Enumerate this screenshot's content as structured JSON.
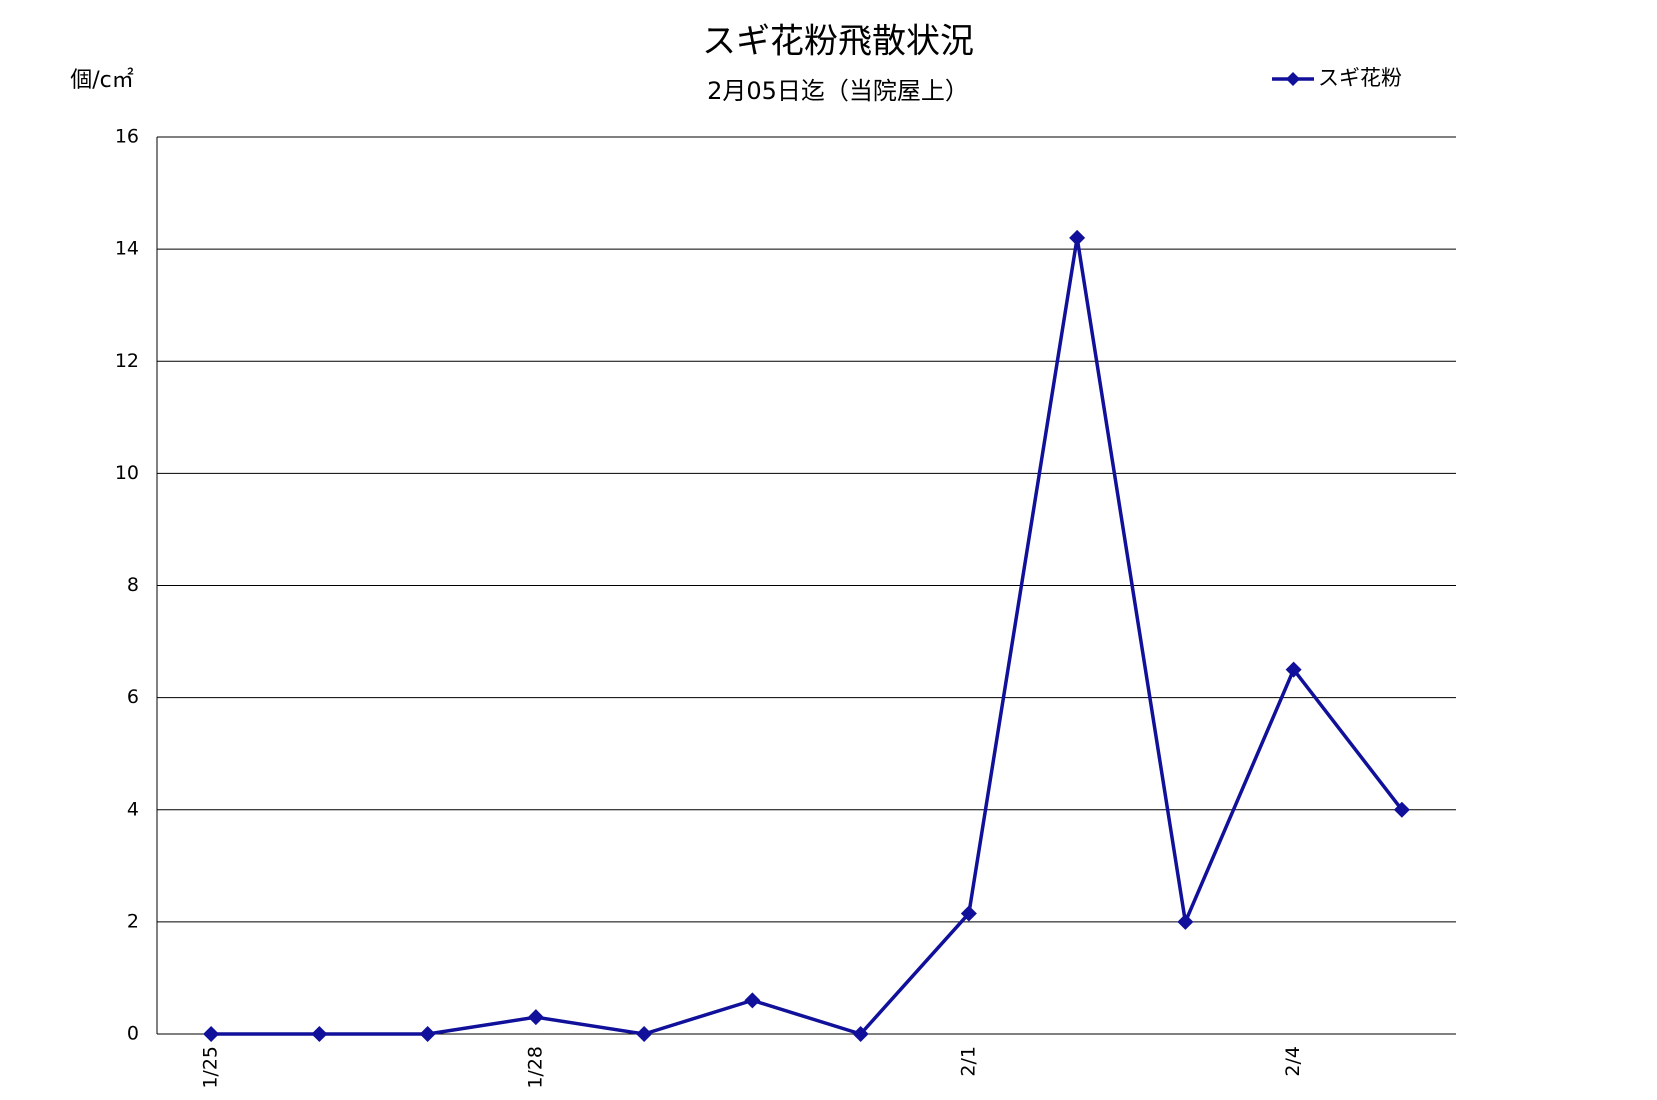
{
  "chart_data": {
    "type": "line",
    "title": "スギ花粉飛散状況",
    "subtitle": "2月05日迄（当院屋上）",
    "y_label": "個/c㎡",
    "categories": [
      "1/25",
      null,
      null,
      "1/28",
      null,
      null,
      null,
      "2/1",
      null,
      null,
      "2/4",
      null
    ],
    "series": [
      {
        "name": "スギ花粉",
        "color": "#10109a",
        "values": [
          0,
          0,
          0,
          0.3,
          0,
          0.6,
          0,
          2.15,
          14.2,
          2,
          6.5,
          4
        ]
      }
    ],
    "ylim": [
      0,
      16
    ],
    "yticks": [
      0,
      2,
      4,
      6,
      8,
      10,
      12,
      14,
      16
    ],
    "grid": true,
    "legend": "top-right"
  }
}
